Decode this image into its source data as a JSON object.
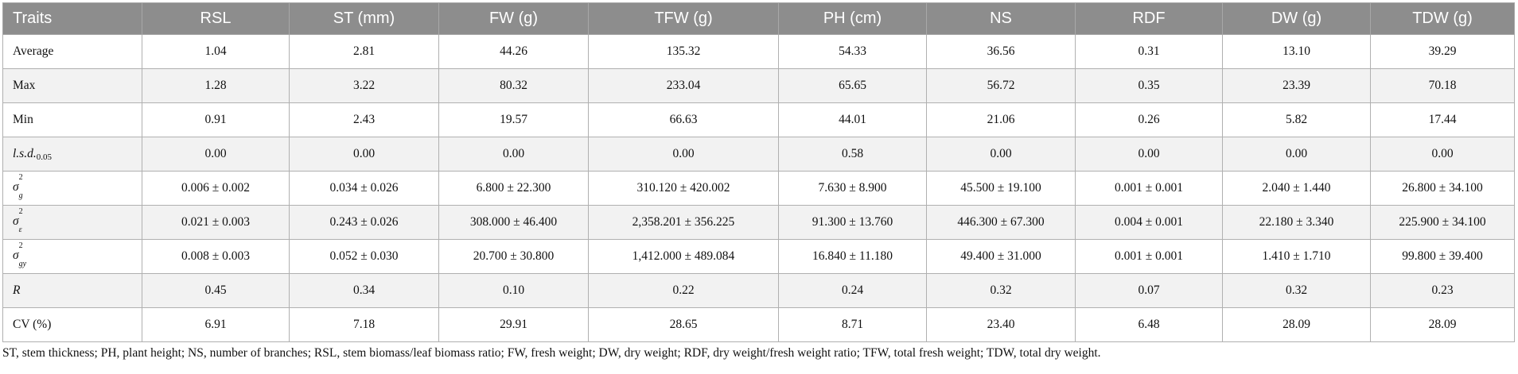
{
  "table": {
    "headers": [
      "Traits",
      "RSL",
      "ST (mm)",
      "FW (g)",
      "TFW (g)",
      "PH (cm)",
      "NS",
      "RDF",
      "DW (g)",
      "TDW (g)"
    ],
    "rows": [
      {
        "label": "Average",
        "values": [
          "1.04",
          "2.81",
          "44.26",
          "135.32",
          "54.33",
          "36.56",
          "0.31",
          "13.10",
          "39.29"
        ]
      },
      {
        "label": "Max",
        "values": [
          "1.28",
          "3.22",
          "80.32",
          "233.04",
          "65.65",
          "56.72",
          "0.35",
          "23.39",
          "70.18"
        ]
      },
      {
        "label": "Min",
        "values": [
          "0.91",
          "2.43",
          "19.57",
          "66.63",
          "44.01",
          "21.06",
          "0.26",
          "5.82",
          "17.44"
        ]
      },
      {
        "label_main": "l.s.d.",
        "label_sub": "0.05",
        "values": [
          "0.00",
          "0.00",
          "0.00",
          "0.00",
          "0.58",
          "0.00",
          "0.00",
          "0.00",
          "0.00"
        ]
      },
      {
        "label_sym": "σ",
        "label_sup": "2",
        "label_sub": "g",
        "values": [
          "0.006 ± 0.002",
          "0.034 ± 0.026",
          "6.800 ± 22.300",
          "310.120 ± 420.002",
          "7.630 ± 8.900",
          "45.500 ± 19.100",
          "0.001 ± 0.001",
          "2.040 ± 1.440",
          "26.800 ± 34.100"
        ]
      },
      {
        "label_sym": "σ",
        "label_sup": "2",
        "label_sub": "ε",
        "values": [
          "0.021 ± 0.003",
          "0.243 ± 0.026",
          "308.000 ± 46.400",
          "2,358.201 ± 356.225",
          "91.300 ± 13.760",
          "446.300 ± 67.300",
          "0.004 ± 0.001",
          "22.180 ± 3.340",
          "225.900 ± 34.100"
        ]
      },
      {
        "label_sym": "σ",
        "label_sup": "2",
        "label_sub": "gy",
        "values": [
          "0.008 ± 0.003",
          "0.052 ± 0.030",
          "20.700 ± 30.800",
          "1,412.000 ± 489.084",
          "16.840 ± 11.180",
          "49.400 ± 31.000",
          "0.001 ± 0.001",
          "1.410 ± 1.710",
          "99.800 ± 39.400"
        ]
      },
      {
        "label_italic": "R",
        "values": [
          "0.45",
          "0.34",
          "0.10",
          "0.22",
          "0.24",
          "0.32",
          "0.07",
          "0.32",
          "0.23"
        ]
      },
      {
        "label": "CV (%)",
        "values": [
          "6.91",
          "7.18",
          "29.91",
          "28.65",
          "8.71",
          "23.40",
          "6.48",
          "28.09",
          "28.09"
        ]
      }
    ]
  },
  "footnote": "ST, stem thickness; PH, plant height; NS, number of branches; RSL, stem biomass/leaf biomass ratio; FW, fresh weight; DW, dry weight; RDF, dry weight/fresh weight ratio; TFW, total fresh weight; TDW, total dry weight."
}
